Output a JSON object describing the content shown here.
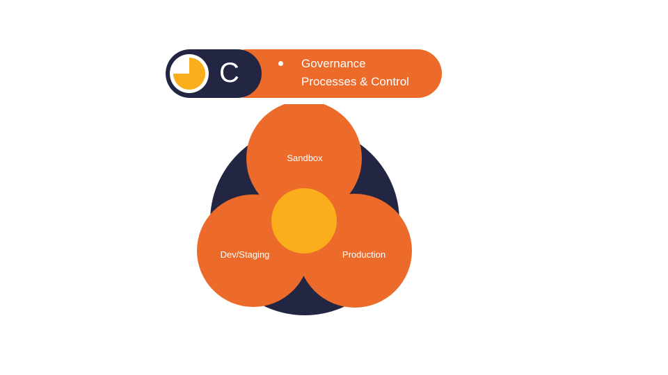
{
  "header": {
    "letter": "C",
    "lines": [
      "Governance",
      "Processes & Control"
    ],
    "icon": "clock-quarter-icon"
  },
  "diagram": {
    "top_label": "Sandbox",
    "left_label": "Dev/Staging",
    "right_label": "Production"
  },
  "colors": {
    "orange": "#ec6b2a",
    "navy": "#222643",
    "yellow": "#fbae1c",
    "white": "#ffffff"
  }
}
